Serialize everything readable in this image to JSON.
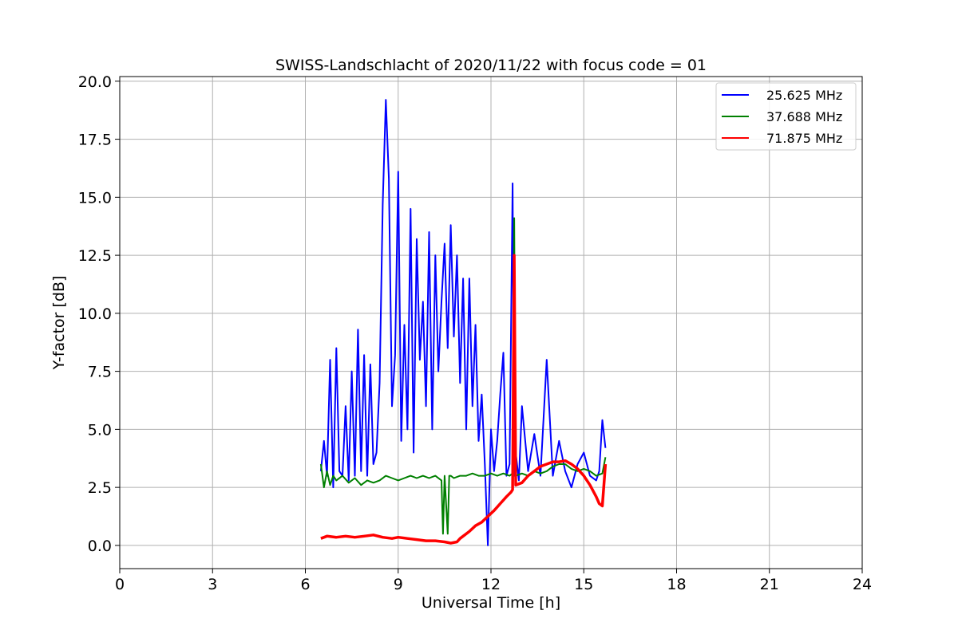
{
  "chart_data": {
    "type": "line",
    "title": "SWISS-Landschlacht of 2020/11/22 with focus code = 01",
    "xlabel": "Universal Time [h]",
    "ylabel": "Y-factor [dB]",
    "xlim": [
      0,
      24
    ],
    "ylim": [
      -1.0,
      20.2
    ],
    "xticks": [
      0,
      3,
      6,
      9,
      12,
      15,
      18,
      21,
      24
    ],
    "xtick_labels": [
      "0",
      "3",
      "6",
      "9",
      "12",
      "15",
      "18",
      "21",
      "24"
    ],
    "yticks": [
      0.0,
      2.5,
      5.0,
      7.5,
      10.0,
      12.5,
      15.0,
      17.5,
      20.0
    ],
    "ytick_labels": [
      "0.0",
      "2.5",
      "5.0",
      "7.5",
      "10.0",
      "12.5",
      "15.0",
      "17.5",
      "20.0"
    ],
    "grid": true,
    "legend_position": "top-right",
    "series": [
      {
        "name": "25.625 MHz",
        "color": "#0000ff",
        "x": [
          6.5,
          6.6,
          6.7,
          6.8,
          6.9,
          7.0,
          7.1,
          7.2,
          7.3,
          7.4,
          7.5,
          7.6,
          7.7,
          7.8,
          7.9,
          8.0,
          8.1,
          8.2,
          8.3,
          8.4,
          8.5,
          8.6,
          8.7,
          8.8,
          8.9,
          9.0,
          9.1,
          9.2,
          9.3,
          9.4,
          9.5,
          9.6,
          9.7,
          9.8,
          9.9,
          10.0,
          10.1,
          10.2,
          10.3,
          10.4,
          10.5,
          10.6,
          10.7,
          10.8,
          10.9,
          11.0,
          11.1,
          11.2,
          11.3,
          11.4,
          11.5,
          11.6,
          11.7,
          11.8,
          11.9,
          12.0,
          12.1,
          12.2,
          12.3,
          12.4,
          12.5,
          12.6,
          12.7,
          12.75,
          12.8,
          12.9,
          13.0,
          13.2,
          13.4,
          13.6,
          13.8,
          14.0,
          14.2,
          14.4,
          14.6,
          14.8,
          15.0,
          15.2,
          15.4,
          15.5,
          15.6,
          15.7
        ],
        "y": [
          3.2,
          4.5,
          3.0,
          8.0,
          2.5,
          8.5,
          3.2,
          3.0,
          6.0,
          2.8,
          7.5,
          3.0,
          9.3,
          3.2,
          8.2,
          3.0,
          7.8,
          3.5,
          4.0,
          7.0,
          14.7,
          19.2,
          15.8,
          6.0,
          8.2,
          16.1,
          4.5,
          9.5,
          5.0,
          14.5,
          4.0,
          13.2,
          8.0,
          10.5,
          6.0,
          13.5,
          5.0,
          12.5,
          7.5,
          10.5,
          13.0,
          8.5,
          13.8,
          9.0,
          12.5,
          7.0,
          11.5,
          5.0,
          11.5,
          6.0,
          9.5,
          4.5,
          6.5,
          3.5,
          0.0,
          5.0,
          3.2,
          4.5,
          6.5,
          8.3,
          3.0,
          3.5,
          15.6,
          3.0,
          4.0,
          2.8,
          6.0,
          3.2,
          4.8,
          3.0,
          8.0,
          3.0,
          4.5,
          3.2,
          2.5,
          3.5,
          4.0,
          3.0,
          2.8,
          3.2,
          5.4,
          4.2
        ]
      },
      {
        "name": "37.688 MHz",
        "color": "#008000",
        "x": [
          6.5,
          6.6,
          6.7,
          6.8,
          6.9,
          7.0,
          7.2,
          7.4,
          7.6,
          7.8,
          8.0,
          8.2,
          8.4,
          8.6,
          8.8,
          9.0,
          9.2,
          9.4,
          9.6,
          9.8,
          10.0,
          10.2,
          10.4,
          10.45,
          10.5,
          10.6,
          10.65,
          10.7,
          10.8,
          11.0,
          11.2,
          11.4,
          11.6,
          11.8,
          12.0,
          12.2,
          12.4,
          12.6,
          12.7,
          12.75,
          12.8,
          13.0,
          13.2,
          13.4,
          13.6,
          13.8,
          14.0,
          14.2,
          14.4,
          14.6,
          14.8,
          15.0,
          15.2,
          15.4,
          15.6,
          15.7
        ],
        "y": [
          3.5,
          2.5,
          3.2,
          2.6,
          3.0,
          2.8,
          3.0,
          2.7,
          2.9,
          2.6,
          2.8,
          2.7,
          2.8,
          3.0,
          2.9,
          2.8,
          2.9,
          3.0,
          2.9,
          3.0,
          2.9,
          3.0,
          2.8,
          0.5,
          3.0,
          0.5,
          3.0,
          3.0,
          2.9,
          3.0,
          3.0,
          3.1,
          3.0,
          3.0,
          3.1,
          3.0,
          3.1,
          3.0,
          3.1,
          14.1,
          3.0,
          3.1,
          3.0,
          3.2,
          3.1,
          3.2,
          3.4,
          3.5,
          3.5,
          3.3,
          3.2,
          3.3,
          3.2,
          3.0,
          3.1,
          3.8
        ]
      },
      {
        "name": "71.875 MHz",
        "color": "#ff0000",
        "x": [
          6.5,
          6.7,
          7.0,
          7.3,
          7.6,
          7.9,
          8.2,
          8.5,
          8.8,
          9.0,
          9.3,
          9.6,
          9.9,
          10.2,
          10.5,
          10.7,
          10.9,
          11.0,
          11.1,
          11.3,
          11.5,
          11.7,
          11.9,
          12.1,
          12.3,
          12.5,
          12.65,
          12.7,
          12.75,
          12.8,
          13.0,
          13.2,
          13.4,
          13.6,
          13.8,
          14.0,
          14.2,
          14.4,
          14.6,
          14.8,
          15.0,
          15.2,
          15.4,
          15.5,
          15.6,
          15.7
        ],
        "y": [
          0.3,
          0.4,
          0.35,
          0.4,
          0.35,
          0.4,
          0.45,
          0.35,
          0.3,
          0.35,
          0.3,
          0.25,
          0.2,
          0.2,
          0.15,
          0.1,
          0.15,
          0.3,
          0.4,
          0.6,
          0.85,
          1.0,
          1.25,
          1.5,
          1.8,
          2.1,
          2.3,
          2.4,
          12.5,
          2.6,
          2.7,
          3.0,
          3.2,
          3.4,
          3.5,
          3.6,
          3.6,
          3.65,
          3.5,
          3.3,
          3.0,
          2.6,
          2.1,
          1.8,
          1.7,
          3.5
        ]
      }
    ]
  }
}
